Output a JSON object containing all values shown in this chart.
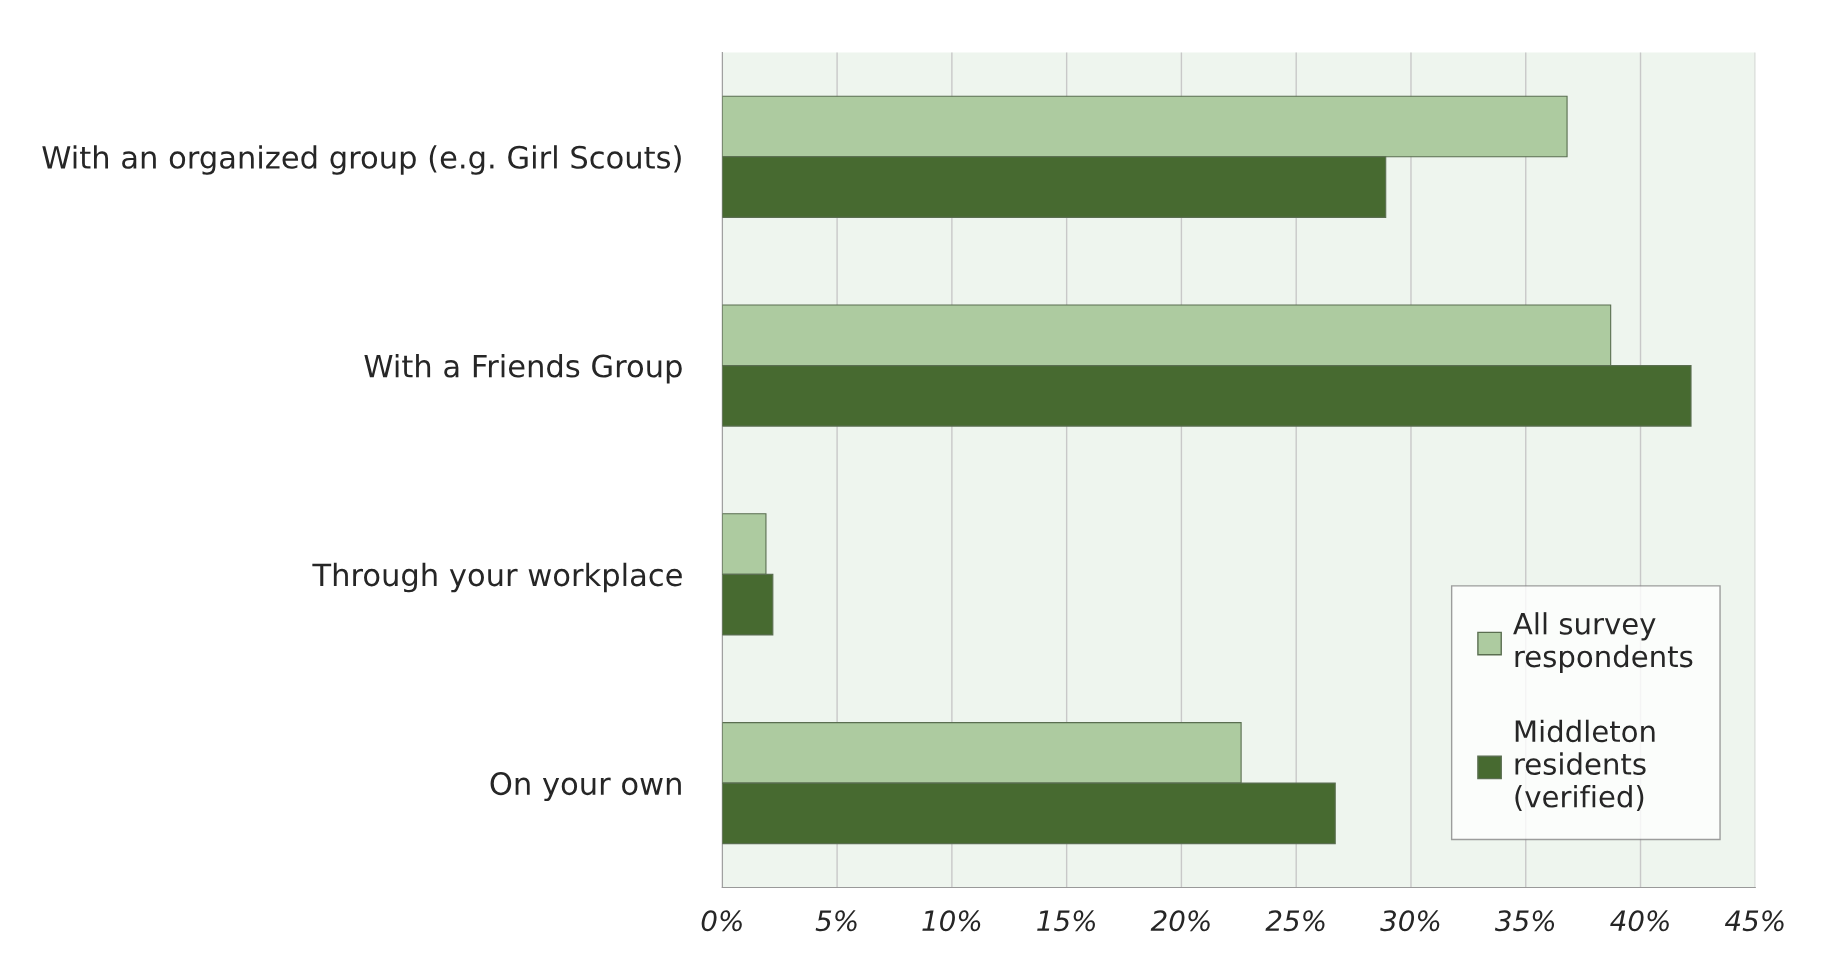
{
  "chart_data": {
    "type": "bar",
    "orientation": "horizontal",
    "categories": [
      "With an organized group (e.g. Girl Scouts)",
      "With a Friends Group",
      "Through your workplace",
      "On your own"
    ],
    "series": [
      {
        "name": "All survey respondents",
        "color": "#adcba0",
        "values": [
          36.8,
          38.7,
          1.9,
          22.6
        ]
      },
      {
        "name": "Middleton residents (verified)",
        "color": "#476a30",
        "values": [
          28.9,
          42.2,
          2.2,
          26.7
        ]
      }
    ],
    "xlim": [
      0,
      45
    ],
    "xticks": [
      {
        "value": 0,
        "label": "0%"
      },
      {
        "value": 5,
        "label": "5%"
      },
      {
        "value": 10,
        "label": "10%"
      },
      {
        "value": 15,
        "label": "15%"
      },
      {
        "value": 20,
        "label": "20%"
      },
      {
        "value": 25,
        "label": "25%"
      },
      {
        "value": 30,
        "label": "30%"
      },
      {
        "value": 35,
        "label": "35%"
      },
      {
        "value": 40,
        "label": "40%"
      },
      {
        "value": 45,
        "label": "45%"
      }
    ],
    "grid": "x",
    "legend": "bottom right"
  }
}
